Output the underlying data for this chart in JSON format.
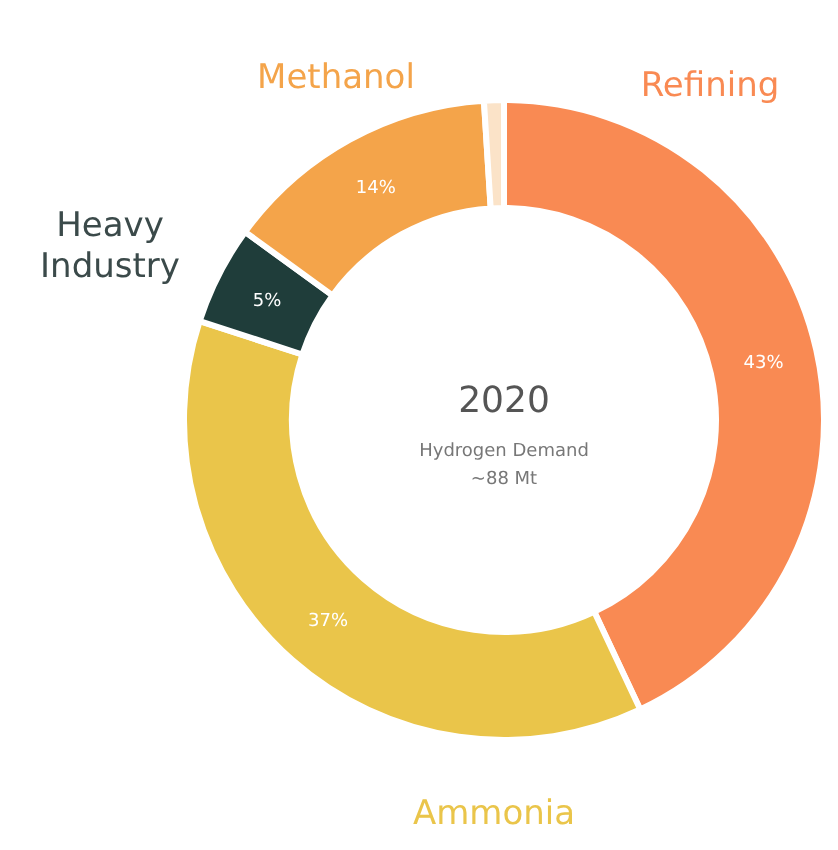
{
  "chart_data": {
    "type": "donut",
    "title": "2020",
    "subtitle": "Hydrogen Demand",
    "annotations": [
      "~88 Mt"
    ],
    "categories": [
      "Refining",
      "Ammonia",
      "Heavy Industry",
      "Methanol",
      null
    ],
    "values": [
      43,
      37,
      5,
      14,
      1
    ],
    "colors": [
      "#f98a53",
      "#eac54a",
      "#1f3d3a",
      "#f4a44a",
      "#fbe3c8"
    ],
    "value_labels": [
      "43%",
      "37%",
      "5%",
      "14%",
      null
    ]
  }
}
